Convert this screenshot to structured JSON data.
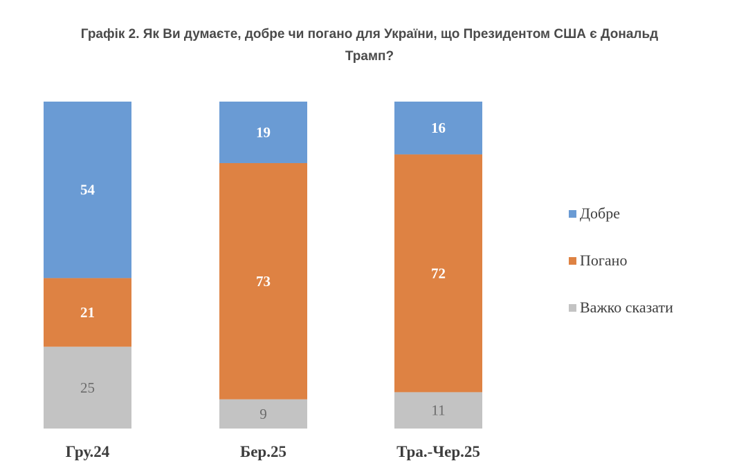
{
  "chart_data": {
    "type": "bar",
    "stacked": true,
    "percent": true,
    "title": "Графік 2. Як Ви думаєте, добре чи погано для України, що Президентом США є Дональд Трамп?",
    "title_lines": [
      "Графік 2. Як Ви думаєте, добре чи погано для України, що Президентом США є Дональд",
      "Трамп?"
    ],
    "categories": [
      "Гру.24",
      "Бер.25",
      "Тра.-Чер.25"
    ],
    "series": [
      {
        "name": "Добре",
        "color": "#6a9bd4",
        "values": [
          54,
          19,
          16
        ]
      },
      {
        "name": "Погано",
        "color": "#de8243",
        "values": [
          21,
          73,
          72
        ]
      },
      {
        "name": "Важко сказати",
        "color": "#c3c3c3",
        "values": [
          25,
          9,
          11
        ]
      }
    ],
    "ylim": [
      0,
      100
    ],
    "grid": false,
    "legend_position": "right"
  }
}
